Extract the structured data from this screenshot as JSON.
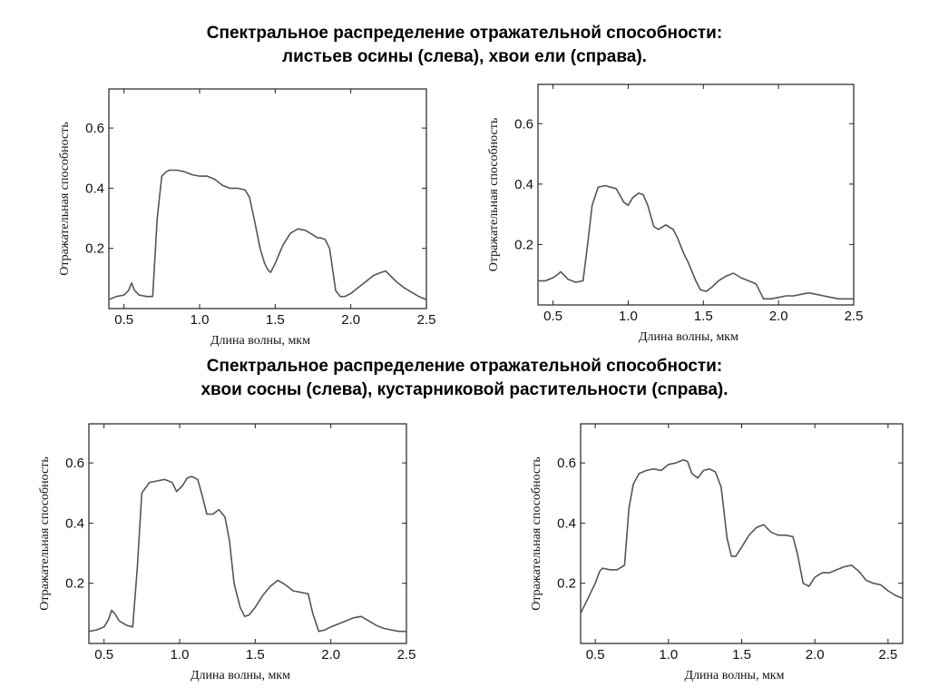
{
  "headings": {
    "top": {
      "line1": "Спектральное распределение отражательной способности:",
      "line2": "листьев осины (слева), хвои ели (справа)."
    },
    "bottom": {
      "line1": "Спектральное распределение отражательной способности:",
      "line2": "хвои сосны (слева), кустарниковой растительности (справа)."
    }
  },
  "chart_data": [
    {
      "type": "line",
      "title": "",
      "xlabel": "Длина волны, мкм",
      "ylabel": "Отражательная способность",
      "xlim": [
        0.4,
        2.5
      ],
      "ylim": [
        0.0,
        0.73
      ],
      "xticks": [
        0.5,
        1.0,
        1.5,
        2.0,
        2.5
      ],
      "xtick_labels": [
        "0.5",
        "1.0",
        "1.5",
        "2.0",
        "2.5"
      ],
      "yticks": [
        0.2,
        0.4,
        0.6
      ],
      "ytick_labels": [
        "0.2",
        "0.4",
        "0.6"
      ],
      "grid": false,
      "series": [
        {
          "color": "#555555",
          "x": [
            0.4,
            0.45,
            0.5,
            0.53,
            0.55,
            0.57,
            0.6,
            0.65,
            0.69,
            0.72,
            0.75,
            0.78,
            0.8,
            0.85,
            0.9,
            0.95,
            1.0,
            1.05,
            1.1,
            1.15,
            1.2,
            1.25,
            1.3,
            1.33,
            1.36,
            1.4,
            1.43,
            1.45,
            1.47,
            1.5,
            1.55,
            1.6,
            1.65,
            1.7,
            1.75,
            1.78,
            1.8,
            1.83,
            1.86,
            1.9,
            1.93,
            1.96,
            2.0,
            2.05,
            2.1,
            2.15,
            2.2,
            2.23,
            2.26,
            2.3,
            2.35,
            2.4,
            2.45,
            2.5
          ],
          "y": [
            0.03,
            0.04,
            0.045,
            0.06,
            0.085,
            0.06,
            0.045,
            0.04,
            0.04,
            0.3,
            0.44,
            0.455,
            0.46,
            0.46,
            0.455,
            0.445,
            0.44,
            0.44,
            0.43,
            0.41,
            0.4,
            0.4,
            0.395,
            0.37,
            0.3,
            0.2,
            0.15,
            0.13,
            0.12,
            0.15,
            0.21,
            0.25,
            0.265,
            0.26,
            0.245,
            0.235,
            0.235,
            0.23,
            0.2,
            0.06,
            0.04,
            0.04,
            0.05,
            0.07,
            0.09,
            0.11,
            0.12,
            0.125,
            0.11,
            0.09,
            0.07,
            0.055,
            0.04,
            0.03
          ]
        }
      ]
    },
    {
      "type": "line",
      "title": "",
      "xlabel": "Длина волны, мкм",
      "ylabel": "Отражательная способность",
      "xlim": [
        0.4,
        2.5
      ],
      "ylim": [
        0.0,
        0.73
      ],
      "xticks": [
        0.5,
        1.0,
        1.5,
        2.0,
        2.5
      ],
      "xtick_labels": [
        "0.5",
        "1.0",
        "1.5",
        "2.0",
        "2.5"
      ],
      "yticks": [
        0.2,
        0.4,
        0.6
      ],
      "ytick_labels": [
        "0.2",
        "0.4",
        "0.6"
      ],
      "grid": false,
      "series": [
        {
          "color": "#555555",
          "x": [
            0.4,
            0.45,
            0.5,
            0.53,
            0.55,
            0.57,
            0.6,
            0.65,
            0.7,
            0.73,
            0.76,
            0.8,
            0.85,
            0.88,
            0.92,
            0.97,
            1.0,
            1.03,
            1.07,
            1.1,
            1.13,
            1.17,
            1.2,
            1.25,
            1.3,
            1.33,
            1.37,
            1.4,
            1.45,
            1.48,
            1.52,
            1.56,
            1.6,
            1.65,
            1.7,
            1.75,
            1.8,
            1.85,
            1.88,
            1.9,
            1.95,
            2.0,
            2.05,
            2.1,
            2.15,
            2.2,
            2.25,
            2.3,
            2.35,
            2.4,
            2.45,
            2.5
          ],
          "y": [
            0.08,
            0.08,
            0.09,
            0.1,
            0.11,
            0.1,
            0.085,
            0.075,
            0.08,
            0.2,
            0.33,
            0.39,
            0.395,
            0.39,
            0.385,
            0.34,
            0.33,
            0.355,
            0.37,
            0.365,
            0.33,
            0.26,
            0.25,
            0.265,
            0.25,
            0.22,
            0.17,
            0.14,
            0.08,
            0.05,
            0.045,
            0.06,
            0.08,
            0.095,
            0.105,
            0.09,
            0.08,
            0.07,
            0.04,
            0.02,
            0.02,
            0.025,
            0.03,
            0.03,
            0.035,
            0.04,
            0.035,
            0.03,
            0.025,
            0.02,
            0.02,
            0.02
          ]
        }
      ]
    },
    {
      "type": "line",
      "title": "",
      "xlabel": "Длина волны, мкм",
      "ylabel": "Отражательная способность",
      "xlim": [
        0.4,
        2.5
      ],
      "ylim": [
        0.0,
        0.73
      ],
      "xticks": [
        0.5,
        1.0,
        1.5,
        2.0,
        2.5
      ],
      "xtick_labels": [
        "0.5",
        "1.0",
        "1.5",
        "2.0",
        "2.5"
      ],
      "yticks": [
        0.2,
        0.4,
        0.6
      ],
      "ytick_labels": [
        "0.2",
        "0.4",
        "0.6"
      ],
      "grid": false,
      "series": [
        {
          "color": "#555555",
          "x": [
            0.4,
            0.45,
            0.5,
            0.53,
            0.55,
            0.57,
            0.6,
            0.65,
            0.69,
            0.72,
            0.75,
            0.8,
            0.85,
            0.9,
            0.95,
            0.98,
            1.02,
            1.05,
            1.08,
            1.12,
            1.15,
            1.18,
            1.22,
            1.26,
            1.3,
            1.33,
            1.36,
            1.4,
            1.43,
            1.46,
            1.5,
            1.55,
            1.6,
            1.65,
            1.7,
            1.75,
            1.8,
            1.85,
            1.88,
            1.92,
            1.96,
            2.0,
            2.05,
            2.1,
            2.15,
            2.2,
            2.25,
            2.3,
            2.35,
            2.4,
            2.45,
            2.5
          ],
          "y": [
            0.04,
            0.045,
            0.055,
            0.08,
            0.11,
            0.1,
            0.075,
            0.06,
            0.055,
            0.25,
            0.5,
            0.535,
            0.54,
            0.545,
            0.535,
            0.505,
            0.525,
            0.55,
            0.555,
            0.545,
            0.49,
            0.43,
            0.43,
            0.445,
            0.42,
            0.34,
            0.2,
            0.12,
            0.09,
            0.095,
            0.12,
            0.16,
            0.19,
            0.21,
            0.195,
            0.175,
            0.17,
            0.165,
            0.1,
            0.04,
            0.045,
            0.055,
            0.065,
            0.075,
            0.085,
            0.09,
            0.075,
            0.06,
            0.05,
            0.045,
            0.04,
            0.04
          ]
        }
      ]
    },
    {
      "type": "line",
      "title": "",
      "xlabel": "Длина волны, мкм",
      "ylabel": "Отражательная способность",
      "xlim": [
        0.4,
        2.6
      ],
      "ylim": [
        0.0,
        0.73
      ],
      "xticks": [
        0.5,
        1.0,
        1.5,
        2.0,
        2.5
      ],
      "xtick_labels": [
        "0.5",
        "1.0",
        "1.5",
        "2.0",
        "2.5"
      ],
      "yticks": [
        0.2,
        0.4,
        0.6
      ],
      "ytick_labels": [
        "0.2",
        "0.4",
        "0.6"
      ],
      "grid": false,
      "series": [
        {
          "color": "#555555",
          "x": [
            0.4,
            0.45,
            0.5,
            0.53,
            0.55,
            0.6,
            0.65,
            0.7,
            0.73,
            0.76,
            0.8,
            0.85,
            0.9,
            0.95,
            1.0,
            1.05,
            1.1,
            1.13,
            1.16,
            1.2,
            1.24,
            1.28,
            1.32,
            1.36,
            1.4,
            1.43,
            1.46,
            1.5,
            1.55,
            1.6,
            1.65,
            1.7,
            1.75,
            1.8,
            1.85,
            1.88,
            1.92,
            1.96,
            2.0,
            2.05,
            2.1,
            2.15,
            2.2,
            2.25,
            2.3,
            2.35,
            2.4,
            2.45,
            2.5,
            2.55,
            2.6
          ],
          "y": [
            0.1,
            0.15,
            0.2,
            0.24,
            0.25,
            0.245,
            0.245,
            0.26,
            0.45,
            0.53,
            0.565,
            0.575,
            0.58,
            0.575,
            0.595,
            0.6,
            0.61,
            0.605,
            0.565,
            0.55,
            0.575,
            0.58,
            0.57,
            0.52,
            0.35,
            0.29,
            0.29,
            0.32,
            0.36,
            0.385,
            0.395,
            0.37,
            0.36,
            0.36,
            0.355,
            0.3,
            0.2,
            0.19,
            0.22,
            0.235,
            0.235,
            0.245,
            0.255,
            0.26,
            0.24,
            0.21,
            0.2,
            0.195,
            0.175,
            0.16,
            0.15
          ]
        }
      ]
    }
  ]
}
